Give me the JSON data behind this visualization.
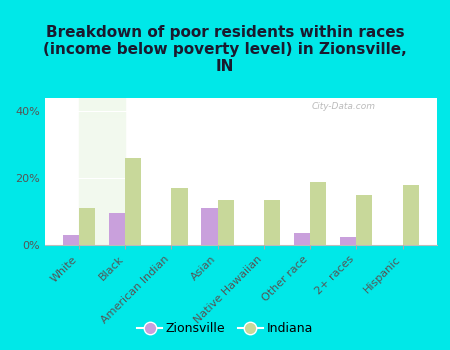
{
  "title": "Breakdown of poor residents within races\n(income below poverty level) in Zionsville,\nIN",
  "categories": [
    "White",
    "Black",
    "American Indian",
    "Asian",
    "Native Hawaiian",
    "Other race",
    "2+ races",
    "Hispanic"
  ],
  "zionsville": [
    3.0,
    9.5,
    0.0,
    11.0,
    0.0,
    3.5,
    2.5,
    0.0
  ],
  "indiana": [
    11.0,
    26.0,
    17.0,
    13.5,
    13.5,
    19.0,
    15.0,
    18.0
  ],
  "zionsville_color": "#c9a0dc",
  "indiana_color": "#c8d89a",
  "background_color": "#00e8e8",
  "plot_bg_top": "#d0ecc8",
  "plot_bg_bottom": "#f2f9ee",
  "ylabel_ticks": [
    0,
    20,
    40
  ],
  "ylim": [
    0,
    44
  ],
  "bar_width": 0.35,
  "title_fontsize": 11,
  "tick_fontsize": 8,
  "legend_labels": [
    "Zionsville",
    "Indiana"
  ],
  "watermark": "City-Data.com"
}
